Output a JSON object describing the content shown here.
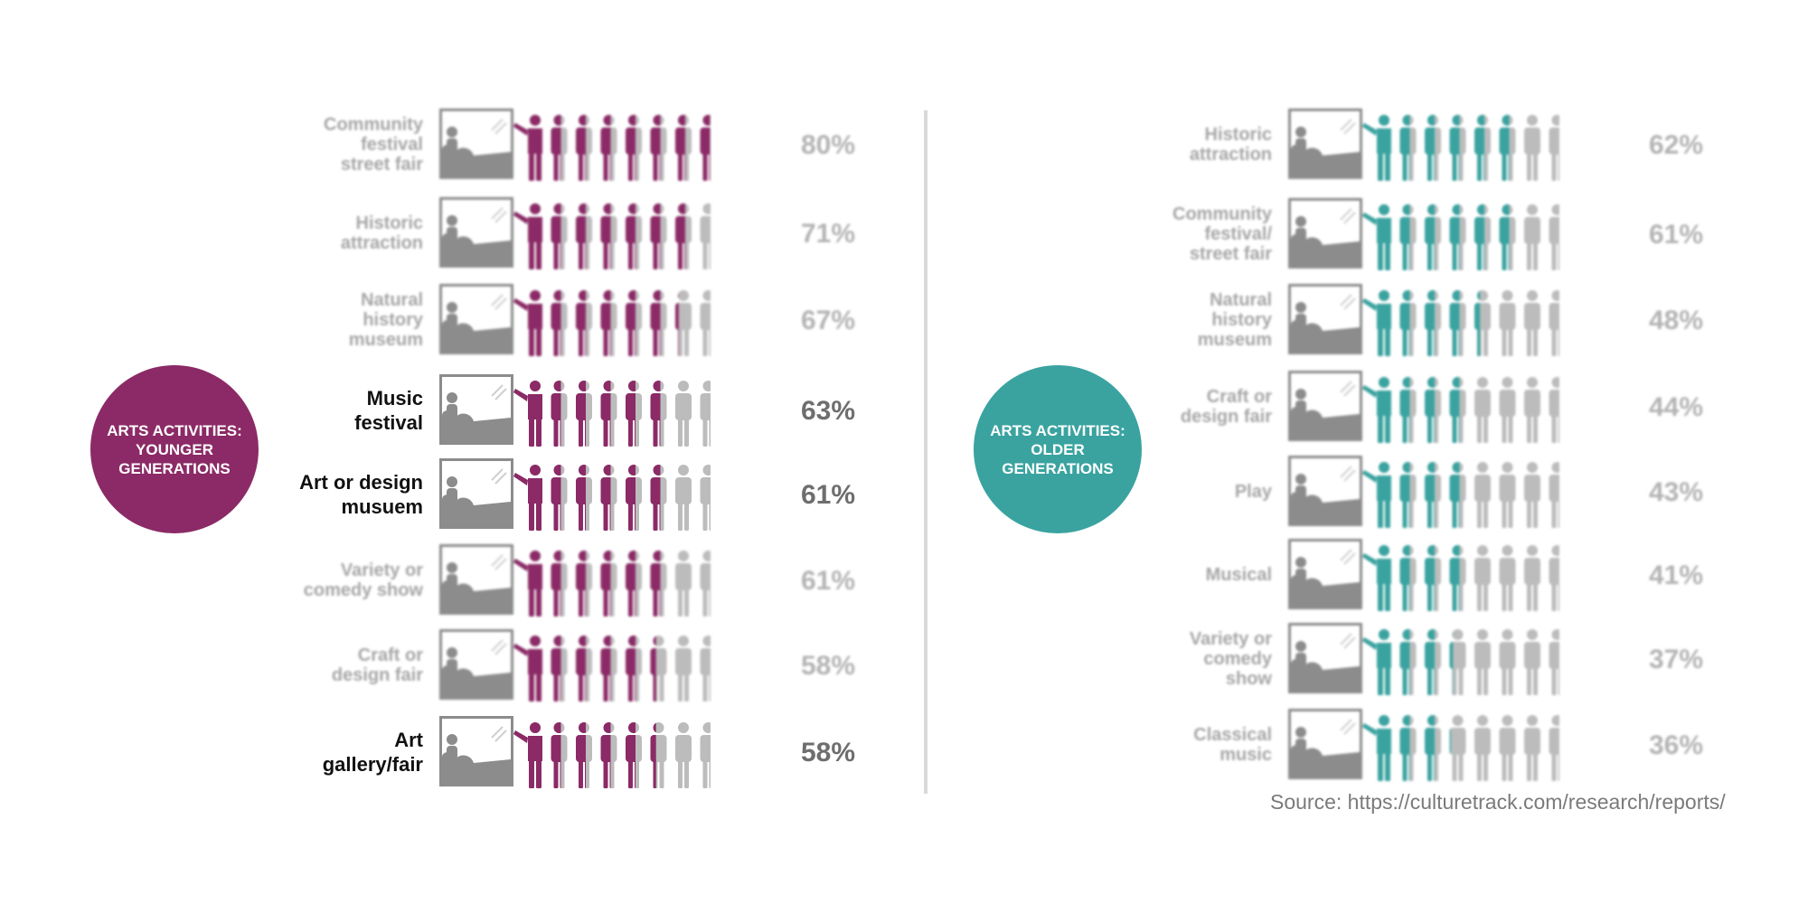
{
  "chart_data": [
    {
      "type": "pictogram",
      "title": "ARTS ACTIVITIES: YOUNGER GENERATIONS",
      "accent_color": "#8b2a66",
      "unit": "%",
      "categories": [
        "Community festival street fair",
        "Historic attraction",
        "Natural history museum",
        "Music festival",
        "Art or design musuem",
        "Variety or comedy show",
        "Craft  or design fair",
        "Art gallery/fair"
      ],
      "label_lines": [
        [
          "Community",
          "festival",
          "street fair"
        ],
        [
          "Historic",
          "attraction"
        ],
        [
          "Natural",
          "history",
          "museum"
        ],
        [
          "Music",
          "festival"
        ],
        [
          "Art or design",
          "musuem"
        ],
        [
          "Variety or",
          "comedy show"
        ],
        [
          "Craft  or",
          "design fair"
        ],
        [
          "Art",
          "gallery/fair"
        ]
      ],
      "values": [
        80,
        71,
        67,
        63,
        61,
        61,
        58,
        58
      ],
      "labels": [
        "80%",
        "71%",
        "67%",
        "63%",
        "61%",
        "61%",
        "58%",
        "58%"
      ],
      "highlighted": [
        false,
        false,
        false,
        true,
        true,
        false,
        false,
        true
      ]
    },
    {
      "type": "pictogram",
      "title": "ARTS ACTIVITIES: OLDER GENERATIONS",
      "accent_color": "#3aa3a0",
      "unit": "%",
      "categories": [
        "Historic attraction",
        "Community festival/ street fair",
        "Natural history museum",
        "Craft or design fair",
        "Play",
        "Musical",
        "Variety or comedy show",
        "Classical music"
      ],
      "label_lines": [
        [
          "Historic",
          "attraction"
        ],
        [
          "Community",
          "festival/",
          "street fair"
        ],
        [
          "Natural",
          "history",
          "museum"
        ],
        [
          "Craft or",
          "design fair"
        ],
        [
          "Play"
        ],
        [
          "Musical"
        ],
        [
          "Variety or",
          "comedy",
          "show"
        ],
        [
          "Classical",
          "music"
        ]
      ],
      "values": [
        62,
        61,
        48,
        44,
        43,
        41,
        37,
        36
      ],
      "labels": [
        "62%",
        "61%",
        "48%",
        "44%",
        "43%",
        "41%",
        "37%",
        "36%"
      ],
      "highlighted": [
        false,
        false,
        false,
        false,
        false,
        false,
        false,
        false
      ]
    }
  ],
  "source": "Source: https://culturetrack.com/research/reports/",
  "colors": {
    "gray_figure": "#a6a6a6",
    "gray_frame": "#8c8c8c"
  }
}
